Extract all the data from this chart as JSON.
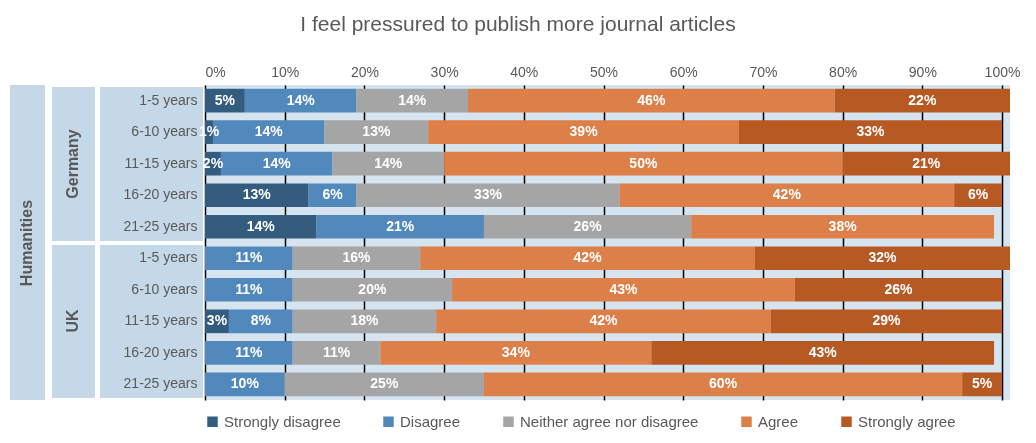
{
  "chart_data": {
    "type": "bar",
    "orientation": "horizontal",
    "stacked": true,
    "title": "I feel pressured to publish more journal articles",
    "annotations": [
      "Humanities",
      "Germany",
      "UK"
    ],
    "categories": [
      "1-5 years",
      "6-10 years",
      "11-15 years",
      "16-20 years",
      "21-25 years",
      "1-5 years",
      "6-10 years",
      "11-15 years",
      "16-20 years",
      "21-25 years"
    ],
    "series": [
      {
        "name": "Strongly disagree",
        "color": "#335c7f",
        "values": [
          5,
          1,
          2,
          13,
          14,
          null,
          null,
          3,
          null,
          null
        ],
        "value_labels": [
          "5%",
          "1%",
          "2%",
          "13%",
          "14%",
          null,
          null,
          "3%",
          null,
          null
        ]
      },
      {
        "name": "Disagree",
        "color": "#5189bc",
        "values": [
          14,
          14,
          14,
          6,
          21,
          11,
          11,
          8,
          11,
          10
        ],
        "value_labels": [
          "14%",
          "14%",
          "14%",
          "6%",
          "21%",
          "11%",
          "11%",
          "8%",
          "11%",
          "10%"
        ]
      },
      {
        "name": "Neither agree nor disagree",
        "color": "#a5a5a5",
        "values": [
          14,
          13,
          14,
          33,
          26,
          16,
          20,
          18,
          11,
          25
        ],
        "value_labels": [
          "14%",
          "13%",
          "14%",
          "33%",
          "26%",
          "16%",
          "20%",
          "18%",
          "11%",
          "25%"
        ]
      },
      {
        "name": "Agree",
        "color": "#dc7f48",
        "values": [
          46,
          39,
          50,
          42,
          38,
          42,
          43,
          42,
          34,
          60
        ],
        "value_labels": [
          "46%",
          "39%",
          "50%",
          "42%",
          "38%",
          "42%",
          "43%",
          "42%",
          "34%",
          "60%"
        ]
      },
      {
        "name": "Strongly agree",
        "color": "#b75923",
        "values": [
          22,
          33,
          21,
          6,
          null,
          32,
          26,
          29,
          43,
          5
        ],
        "value_labels": [
          "22%",
          "33%",
          "21%",
          "6%",
          null,
          "32%",
          "26%",
          "29%",
          "43%",
          "5%"
        ]
      }
    ],
    "xlim": [
      0,
      101
    ],
    "xticks": [
      {
        "value": 0,
        "label": "0%"
      },
      {
        "value": 10,
        "label": "10%"
      },
      {
        "value": 20,
        "label": "20%"
      },
      {
        "value": 30,
        "label": "30%"
      },
      {
        "value": 40,
        "label": "40%"
      },
      {
        "value": 50,
        "label": "50%"
      },
      {
        "value": 60,
        "label": "60%"
      },
      {
        "value": 70,
        "label": "70%"
      },
      {
        "value": 80,
        "label": "80%"
      },
      {
        "value": 90,
        "label": "90%"
      },
      {
        "value": 100,
        "label": "100%"
      }
    ],
    "grid": true,
    "legend": "bottom"
  }
}
